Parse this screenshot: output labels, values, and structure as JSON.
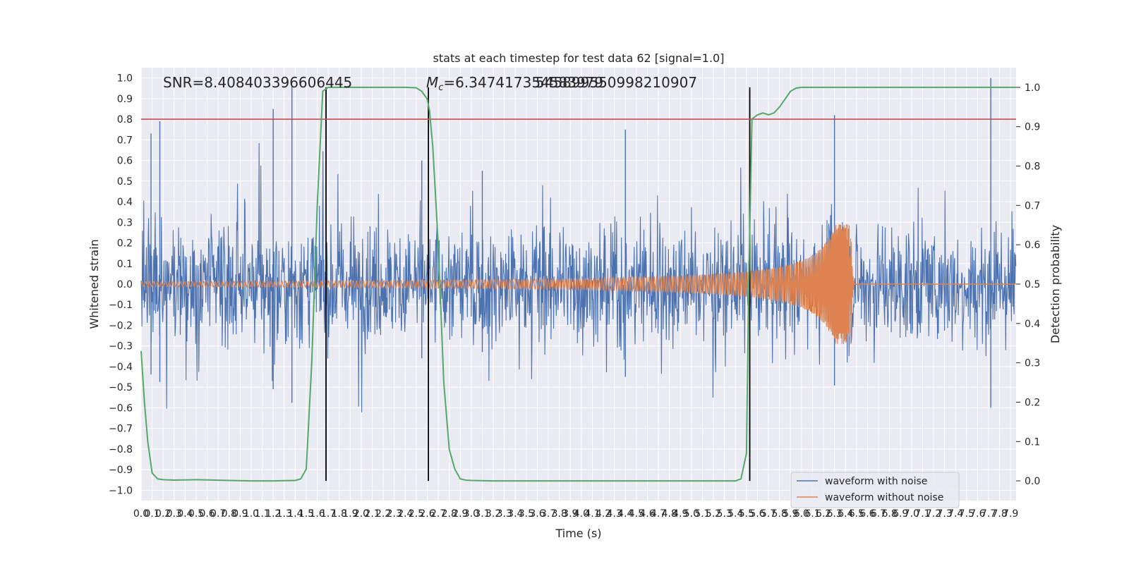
{
  "chart_data": {
    "type": "line",
    "title": "stats at each timestep for test data 62 [signal=1.0]",
    "xlabel": "Time (s)",
    "ylabel": "Whitened strain",
    "ylabel_right": "Detection probability",
    "xlim": [
      0.0,
      7.95
    ],
    "ylim": [
      -1.05,
      1.05
    ],
    "ylim_right": [
      -0.05,
      1.05
    ],
    "x_ticks": [
      "0.0",
      "0.1",
      "0.2",
      "0.3",
      "0.4",
      "0.5",
      "0.6",
      "0.7",
      "0.8",
      "0.9",
      "1.0",
      "1.1",
      "1.2",
      "1.3",
      "1.4",
      "1.5",
      "1.6",
      "1.7",
      "1.8",
      "1.9",
      "2.0",
      "2.1",
      "2.2",
      "2.3",
      "2.4",
      "2.5",
      "2.6",
      "2.7",
      "2.8",
      "2.9",
      "3.0",
      "3.1",
      "3.2",
      "3.3",
      "3.4",
      "3.5",
      "3.6",
      "3.7",
      "3.8",
      "3.9",
      "4.0",
      "4.1",
      "4.2",
      "4.3",
      "4.4",
      "4.5",
      "4.6",
      "4.7",
      "4.8",
      "4.9",
      "5.0",
      "5.1",
      "5.2",
      "5.3",
      "5.4",
      "5.5",
      "5.6",
      "5.7",
      "5.8",
      "5.9",
      "6.0",
      "6.1",
      "6.2",
      "6.3",
      "6.4",
      "6.5",
      "6.6",
      "6.7",
      "6.8",
      "6.9",
      "7.0",
      "7.1",
      "7.2",
      "7.3",
      "7.4",
      "7.5",
      "7.6",
      "7.7",
      "7.8",
      "7.9"
    ],
    "y_ticks_left": [
      "1.0",
      "0.9",
      "0.8",
      "0.7",
      "0.6",
      "0.5",
      "0.4",
      "0.3",
      "0.2",
      "0.1",
      "0.0",
      "−0.1",
      "−0.2",
      "−0.3",
      "−0.4",
      "−0.5",
      "−0.6",
      "−0.7",
      "−0.8",
      "−0.9",
      "−1.0"
    ],
    "y_ticks_right": [
      "1.0",
      "0.9",
      "0.8",
      "0.7",
      "0.6",
      "0.5",
      "0.4",
      "0.3",
      "0.2",
      "0.1",
      "0.0"
    ],
    "annotations": {
      "snr": "SNR=8.408403396606445",
      "mc_symbol": "M",
      "mc_sub": "c",
      "mc_value": "=6.347417354583979",
      "overlap": "545899550998210907"
    },
    "threshold_line": {
      "value": 0.8,
      "color": "#c44e52"
    },
    "vertical_lines": [
      1.68,
      2.61,
      5.53
    ],
    "series": [
      {
        "name": "waveform with noise",
        "color": "#4c72b0",
        "sample_rate": 250,
        "amplitude_core": 0.26,
        "amplitude_peaks": [
          0.73,
          0.79,
          0.85,
          0.96,
          0.6,
          0.55,
          0.75,
          0.82,
          1.0
        ]
      },
      {
        "name": "waveform without noise",
        "color": "#dd8452",
        "amplitude_start": 0.012,
        "merger_time": 6.45,
        "merger_amplitude": 0.29,
        "ringdown_end": 6.48
      },
      {
        "color": "#55a868",
        "axis": "right",
        "x": [
          0.0,
          0.03,
          0.06,
          0.1,
          0.15,
          0.2,
          0.3,
          0.5,
          0.8,
          1.0,
          1.2,
          1.4,
          1.45,
          1.5,
          1.55,
          1.6,
          1.65,
          1.7,
          1.75,
          1.8,
          1.85,
          1.9,
          2.0,
          2.2,
          2.4,
          2.5,
          2.55,
          2.6,
          2.62,
          2.65,
          2.7,
          2.75,
          2.8,
          2.85,
          2.9,
          2.95,
          3.0,
          3.2,
          3.5,
          4.0,
          4.5,
          5.0,
          5.3,
          5.4,
          5.45,
          5.5,
          5.52,
          5.55,
          5.6,
          5.65,
          5.7,
          5.75,
          5.8,
          5.85,
          5.9,
          5.95,
          6.0,
          6.1,
          6.5,
          7.0,
          7.5,
          7.95
        ],
        "y": [
          0.33,
          0.2,
          0.1,
          0.02,
          0.005,
          0.003,
          0.002,
          0.003,
          0.001,
          0.0,
          0.0,
          0.001,
          0.005,
          0.03,
          0.3,
          0.7,
          0.99,
          1.0,
          1.0,
          1.0,
          1.0,
          1.0,
          1.0,
          1.0,
          1.0,
          0.999,
          0.99,
          0.97,
          0.94,
          0.85,
          0.6,
          0.25,
          0.08,
          0.03,
          0.005,
          0.002,
          0.001,
          0.0,
          0.0,
          0.0,
          0.0,
          0.0,
          0.0,
          0.0,
          0.005,
          0.07,
          0.5,
          0.92,
          0.93,
          0.935,
          0.93,
          0.935,
          0.95,
          0.97,
          0.99,
          0.998,
          1.0,
          1.0,
          1.0,
          1.0,
          1.0,
          1.0
        ]
      }
    ],
    "legend": {
      "placement": "lower-right",
      "entries": [
        "waveform with noise",
        "waveform without noise"
      ]
    },
    "grid": true,
    "colors": {
      "background": "#eaeaf2",
      "grid": "#ffffff",
      "vline": "#000000"
    }
  }
}
